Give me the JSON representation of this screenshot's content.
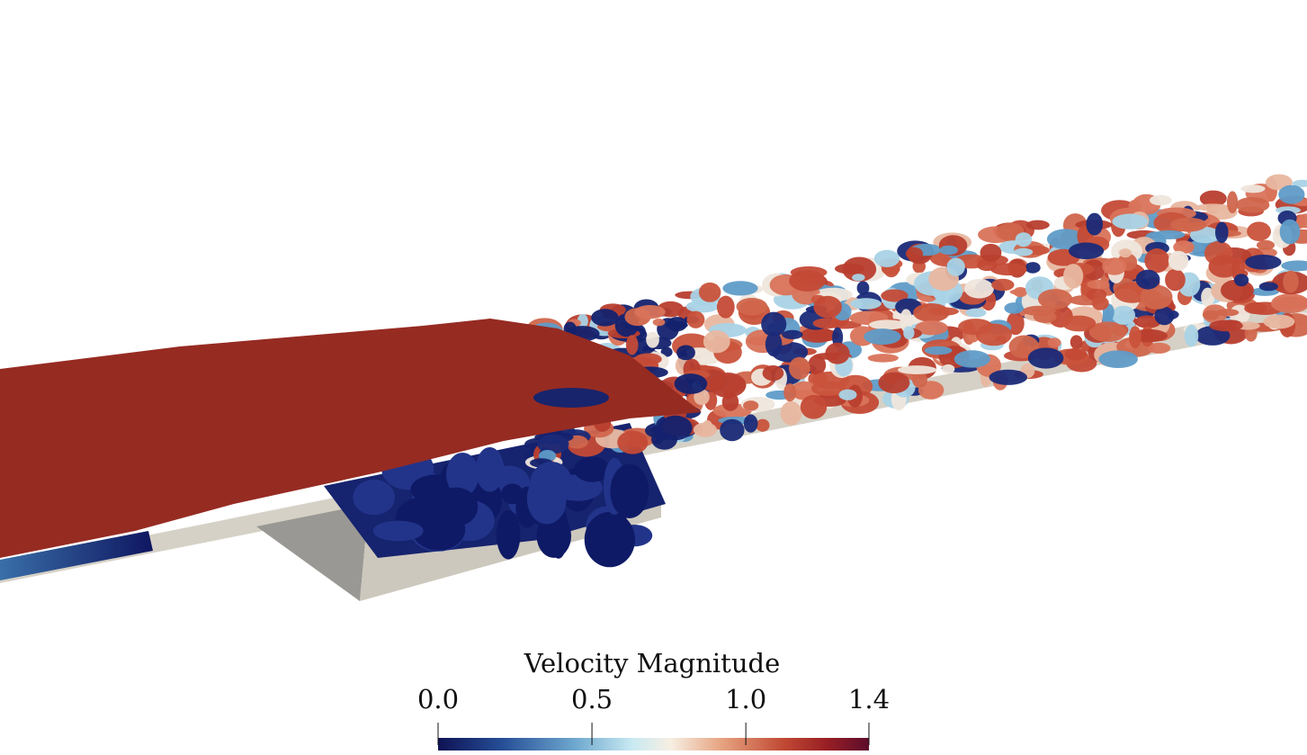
{
  "colorbar": {
    "title": "Velocity Magnitude",
    "range": [
      0,
      1.4
    ],
    "ticks": [
      {
        "value": 0,
        "label": "0.0"
      },
      0.5,
      {
        "value": 1,
        "label": "1.0"
      },
      1.4
    ]
  }
}
